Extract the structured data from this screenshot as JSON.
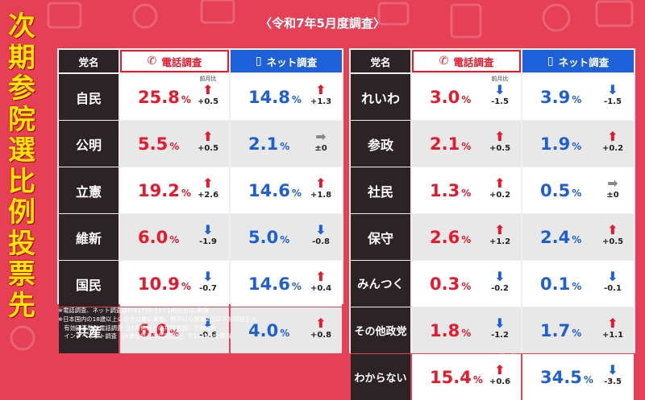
{
  "title_chars": [
    "次",
    "期",
    "参",
    "院",
    "選",
    "比",
    "例",
    "投",
    "票",
    "先"
  ],
  "survey_label": "〈令和7年5月度調査〉",
  "headers": {
    "party": "党名",
    "phone": "電話調査",
    "net": "ネット調査"
  },
  "icons": {
    "phone": "phone-icon",
    "net": "smartphone-icon"
  },
  "colors": {
    "background": "#e64057",
    "title": "#ffe600",
    "phone": "#e8192c",
    "net": "#1e60d8",
    "up": "#e8192c",
    "down": "#1e60d8",
    "flat": "#888888"
  },
  "prev_month_label": "前月比",
  "pct": "%",
  "arrows": {
    "up": "⬆",
    "down": "⬇",
    "flat": "➡"
  },
  "left_table": [
    {
      "party": "自民",
      "phone": {
        "value": "25.8",
        "dir": "up",
        "diff": "+0.5"
      },
      "net": {
        "value": "14.8",
        "dir": "up",
        "diff": "+1.3"
      }
    },
    {
      "party": "公明",
      "phone": {
        "value": "5.5",
        "dir": "up",
        "diff": "+0.5"
      },
      "net": {
        "value": "2.1",
        "dir": "flat",
        "diff": "±0"
      }
    },
    {
      "party": "立憲",
      "phone": {
        "value": "19.2",
        "dir": "up",
        "diff": "+2.6"
      },
      "net": {
        "value": "14.6",
        "dir": "up",
        "diff": "+1.8"
      }
    },
    {
      "party": "維新",
      "phone": {
        "value": "6.0",
        "dir": "down",
        "diff": "-1.9"
      },
      "net": {
        "value": "5.0",
        "dir": "down",
        "diff": "-0.8"
      }
    },
    {
      "party": "国民",
      "phone": {
        "value": "10.9",
        "dir": "down",
        "diff": "-0.7"
      },
      "net": {
        "value": "14.6",
        "dir": "up",
        "diff": "+0.4"
      }
    },
    {
      "party": "共産",
      "phone": {
        "value": "6.0",
        "dir": "down",
        "diff": "-0.6"
      },
      "net": {
        "value": "4.0",
        "dir": "up",
        "diff": "+0.8"
      }
    }
  ],
  "right_table": [
    {
      "party": "れいわ",
      "phone": {
        "value": "3.0",
        "dir": "down",
        "diff": "-1.5"
      },
      "net": {
        "value": "3.9",
        "dir": "down",
        "diff": "-1.5"
      }
    },
    {
      "party": "参政",
      "phone": {
        "value": "2.1",
        "dir": "up",
        "diff": "+0.5"
      },
      "net": {
        "value": "1.9",
        "dir": "up",
        "diff": "+0.2"
      }
    },
    {
      "party": "社民",
      "phone": {
        "value": "1.3",
        "dir": "up",
        "diff": "+0.2"
      },
      "net": {
        "value": "0.5",
        "dir": "flat",
        "diff": "±0"
      }
    },
    {
      "party": "保守",
      "phone": {
        "value": "2.6",
        "dir": "up",
        "diff": "+1.2"
      },
      "net": {
        "value": "2.4",
        "dir": "up",
        "diff": "+0.5"
      }
    },
    {
      "party": "みんつく",
      "phone": {
        "value": "0.3",
        "dir": "down",
        "diff": "-0.2"
      },
      "net": {
        "value": "0.1",
        "dir": "down",
        "diff": "-0.1"
      }
    },
    {
      "party": "その他政党",
      "phone": {
        "value": "1.8",
        "dir": "down",
        "diff": "-1.2"
      },
      "net": {
        "value": "1.7",
        "dir": "up",
        "diff": "+1.1"
      }
    },
    {
      "party": "わからない",
      "phone": {
        "value": "15.4",
        "dir": "up",
        "diff": "+0.6"
      },
      "net": {
        "value": "34.5",
        "dir": "down",
        "diff": "-3.5"
      }
    }
  ],
  "notes": [
    "※電話調査、ネット調査は5月17日(土)・18日(日)に実施",
    "※日本国内の18歳以上の方を対象に実施。数字は小数第2位以下を四捨五入",
    "　有効回答数は電話調査（JX通信社との共同実施）で986件",
    "　インターネット調査（JX通信社との共同実施）で1134件を取得"
  ]
}
